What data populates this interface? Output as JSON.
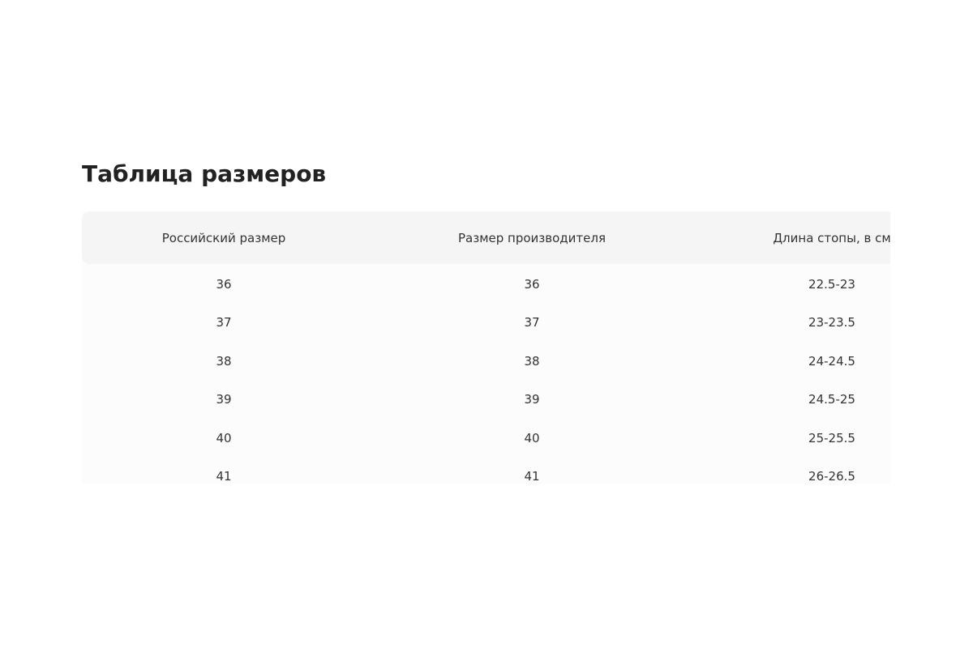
{
  "title": "Таблица размеров",
  "table": {
    "headers": [
      "Российский размер",
      "Размер производителя",
      "Длина стопы, в см"
    ],
    "rows": [
      [
        "36",
        "36",
        "22.5-23"
      ],
      [
        "37",
        "37",
        "23-23.5"
      ],
      [
        "38",
        "38",
        "24-24.5"
      ],
      [
        "39",
        "39",
        "24.5-25"
      ],
      [
        "40",
        "40",
        "25-25.5"
      ],
      [
        "41",
        "41",
        "26-26.5"
      ]
    ]
  }
}
